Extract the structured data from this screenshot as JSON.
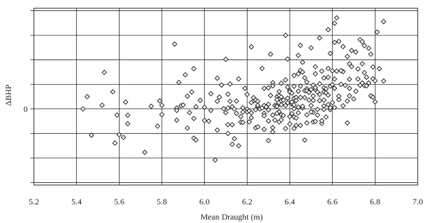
{
  "chart_data": {
    "type": "scatter",
    "title": "",
    "xlabel": "Mean Draught (m)",
    "ylabel": "ΔBHP",
    "xlim": [
      5.2,
      7.0
    ],
    "ylim": [
      -3.1,
      4.1
    ],
    "xticks": [
      "5.2",
      "5.4",
      "5.6",
      "5.8",
      "6.0",
      "6.2",
      "6.4",
      "6.6",
      "6.8",
      "7.0"
    ],
    "ytick_values": [
      -3,
      -2,
      -1,
      0,
      1,
      2,
      3,
      4
    ],
    "ytick_labels": {
      "0": "0"
    },
    "grid": true,
    "legend": "none",
    "marker": "diamond-open",
    "colors": {
      "marker": "#222222",
      "grid": "#222222",
      "frame": "#222222"
    },
    "points": [
      [
        5.43,
        0.0
      ],
      [
        5.45,
        0.5
      ],
      [
        5.47,
        -1.07
      ],
      [
        5.52,
        0.15
      ],
      [
        5.53,
        1.49
      ],
      [
        5.57,
        0.7
      ],
      [
        5.58,
        -1.39
      ],
      [
        5.59,
        -0.25
      ],
      [
        5.6,
        -1.05
      ],
      [
        5.62,
        -1.16
      ],
      [
        5.63,
        0.28
      ],
      [
        5.64,
        -0.26
      ],
      [
        5.64,
        -0.6
      ],
      [
        5.72,
        -1.77
      ],
      [
        5.75,
        0.11
      ],
      [
        5.78,
        -0.7
      ],
      [
        5.79,
        0.33
      ],
      [
        5.8,
        -0.23
      ],
      [
        5.8,
        0.15
      ],
      [
        5.86,
        2.64
      ],
      [
        5.87,
        -0.46
      ],
      [
        5.87,
        0.04
      ],
      [
        5.87,
        -0.06
      ],
      [
        5.88,
        1.08
      ],
      [
        5.89,
        0.13
      ],
      [
        5.9,
        0.16
      ],
      [
        5.91,
        1.39
      ],
      [
        5.92,
        0.52
      ],
      [
        5.92,
        -0.78
      ],
      [
        5.93,
        -0.15
      ],
      [
        5.94,
        0.69
      ],
      [
        5.95,
        1.64
      ],
      [
        5.95,
        -0.39
      ],
      [
        5.95,
        -1.19
      ],
      [
        5.96,
        -1.26
      ],
      [
        5.96,
        0.09
      ],
      [
        5.98,
        0.35
      ],
      [
        6.0,
        0.07
      ],
      [
        6.0,
        -0.47
      ],
      [
        6.02,
        -0.5
      ],
      [
        6.03,
        0.62
      ],
      [
        6.03,
        -0.06
      ],
      [
        6.05,
        -2.08
      ],
      [
        6.06,
        -0.86
      ],
      [
        6.06,
        0.31
      ],
      [
        6.06,
        1.25
      ],
      [
        6.07,
        0.48
      ],
      [
        6.08,
        0.97
      ],
      [
        6.09,
        0.01
      ],
      [
        6.1,
        2.02
      ],
      [
        6.1,
        -0.15
      ],
      [
        6.11,
        0.6
      ],
      [
        6.11,
        -0.64
      ],
      [
        6.11,
        0.04
      ],
      [
        6.11,
        -1.0
      ],
      [
        6.12,
        0.31
      ],
      [
        6.12,
        1.02
      ],
      [
        6.13,
        0.09
      ],
      [
        6.13,
        -1.44
      ],
      [
        6.13,
        -0.64
      ],
      [
        6.14,
        0.0
      ],
      [
        6.14,
        -1.21
      ],
      [
        6.15,
        0.32
      ],
      [
        6.15,
        -0.18
      ],
      [
        6.16,
        1.22
      ],
      [
        6.16,
        -1.5
      ],
      [
        6.17,
        -0.31
      ],
      [
        6.17,
        -0.54
      ],
      [
        6.18,
        0.05
      ],
      [
        6.18,
        -0.55
      ],
      [
        6.18,
        -0.13
      ],
      [
        6.19,
        0.84
      ],
      [
        6.2,
        -0.01
      ],
      [
        6.2,
        -0.12
      ],
      [
        6.2,
        0.59
      ],
      [
        6.21,
        -0.53
      ],
      [
        6.21,
        -0.08
      ],
      [
        6.22,
        -0.16
      ],
      [
        6.22,
        -0.36
      ],
      [
        6.22,
        2.53
      ],
      [
        6.23,
        0.33
      ],
      [
        6.23,
        0.46
      ],
      [
        6.24,
        0.36
      ],
      [
        6.24,
        -0.03
      ],
      [
        6.24,
        -0.77
      ],
      [
        6.25,
        0.31
      ],
      [
        6.25,
        -0.73
      ],
      [
        6.25,
        0.09
      ],
      [
        6.25,
        0.15
      ],
      [
        6.26,
        0.0
      ],
      [
        6.27,
        0.04
      ],
      [
        6.27,
        1.65
      ],
      [
        6.28,
        -0.18
      ],
      [
        6.28,
        -0.83
      ],
      [
        6.28,
        -0.28
      ],
      [
        6.28,
        0.14
      ],
      [
        6.29,
        0.08
      ],
      [
        6.3,
        0.86
      ],
      [
        6.3,
        -0.49
      ],
      [
        6.3,
        0.19
      ],
      [
        6.3,
        -1.29
      ],
      [
        6.3,
        -0.04
      ],
      [
        6.31,
        2.23
      ],
      [
        6.31,
        0.55
      ],
      [
        6.32,
        1.07
      ],
      [
        6.32,
        -0.76
      ],
      [
        6.32,
        0.94
      ],
      [
        6.32,
        -0.25
      ],
      [
        6.32,
        -0.93
      ],
      [
        6.33,
        -0.46
      ],
      [
        6.33,
        0.14
      ],
      [
        6.34,
        0.5
      ],
      [
        6.34,
        0.37
      ],
      [
        6.34,
        0.16
      ],
      [
        6.34,
        0.1
      ],
      [
        6.35,
        0.54
      ],
      [
        6.35,
        0.71
      ],
      [
        6.35,
        -0.12
      ],
      [
        6.35,
        -0.53
      ],
      [
        6.36,
        0.49
      ],
      [
        6.36,
        -0.45
      ],
      [
        6.36,
        0.17
      ],
      [
        6.36,
        0.33
      ],
      [
        6.36,
        -0.24
      ],
      [
        6.37,
        0.36
      ],
      [
        6.37,
        -0.27
      ],
      [
        6.38,
        3.0
      ],
      [
        6.38,
        -0.8
      ],
      [
        6.38,
        0.14
      ],
      [
        6.39,
        0.89
      ],
      [
        6.39,
        2.03
      ],
      [
        6.39,
        0.44
      ],
      [
        6.39,
        0.25
      ],
      [
        6.4,
        0.75
      ],
      [
        6.4,
        -0.61
      ],
      [
        6.4,
        0.69
      ],
      [
        6.41,
        0.2
      ],
      [
        6.41,
        -0.19
      ],
      [
        6.41,
        0.28
      ],
      [
        6.41,
        0.64
      ],
      [
        6.42,
        -0.79
      ],
      [
        6.42,
        0.01
      ],
      [
        6.42,
        0.17
      ],
      [
        6.42,
        0.92
      ],
      [
        6.42,
        -0.33
      ],
      [
        6.42,
        0.44
      ],
      [
        6.43,
        -0.67
      ],
      [
        6.43,
        0.47
      ],
      [
        6.43,
        0.34
      ],
      [
        6.43,
        -0.37
      ],
      [
        6.44,
        2.18
      ],
      [
        6.44,
        1.43
      ],
      [
        6.44,
        0.07
      ],
      [
        6.44,
        -0.16
      ],
      [
        6.45,
        0.93
      ],
      [
        6.45,
        0.47
      ],
      [
        6.45,
        2.59
      ],
      [
        6.45,
        1.57
      ],
      [
        6.45,
        -0.67
      ],
      [
        6.46,
        0.04
      ],
      [
        6.46,
        1.9
      ],
      [
        6.46,
        0.11
      ],
      [
        6.47,
        0.46
      ],
      [
        6.47,
        0.74
      ],
      [
        6.47,
        -1.27
      ],
      [
        6.47,
        1.27
      ],
      [
        6.48,
        -0.24
      ],
      [
        6.48,
        0.82
      ],
      [
        6.48,
        0.74
      ],
      [
        6.48,
        -0.57
      ],
      [
        6.49,
        0.36
      ],
      [
        6.49,
        0.67
      ],
      [
        6.5,
        0.79
      ],
      [
        6.5,
        2.49
      ],
      [
        6.5,
        0.14
      ],
      [
        6.51,
        -0.14
      ],
      [
        6.51,
        0.35
      ],
      [
        6.51,
        0.97
      ],
      [
        6.51,
        -0.53
      ],
      [
        6.51,
        0.53
      ],
      [
        6.52,
        1.72
      ],
      [
        6.52,
        -0.51
      ],
      [
        6.52,
        0.79
      ],
      [
        6.52,
        0.87
      ],
      [
        6.53,
        0.69
      ],
      [
        6.53,
        -0.02
      ],
      [
        6.53,
        -0.25
      ],
      [
        6.54,
        2.89
      ],
      [
        6.54,
        0.34
      ],
      [
        6.54,
        1.02
      ],
      [
        6.54,
        0.59
      ],
      [
        6.55,
        1.54
      ],
      [
        6.55,
        -0.59
      ],
      [
        6.55,
        -0.48
      ],
      [
        6.56,
        0.36
      ],
      [
        6.56,
        0.69
      ],
      [
        6.56,
        0.12
      ],
      [
        6.56,
        0.86
      ],
      [
        6.57,
        0.82
      ],
      [
        6.57,
        0.66
      ],
      [
        6.57,
        -0.33
      ],
      [
        6.58,
        3.23
      ],
      [
        6.58,
        1.29
      ],
      [
        6.58,
        0.18
      ],
      [
        6.58,
        0.56
      ],
      [
        6.59,
        -0.03
      ],
      [
        6.59,
        0.05
      ],
      [
        6.59,
        0.93
      ],
      [
        6.59,
        2.26
      ],
      [
        6.6,
        1.55
      ],
      [
        6.6,
        0.26
      ],
      [
        6.61,
        2.71
      ],
      [
        6.61,
        0.06
      ],
      [
        6.61,
        1.22
      ],
      [
        6.61,
        0.84
      ],
      [
        6.61,
        3.49
      ],
      [
        6.62,
        3.71
      ],
      [
        6.62,
        1.54
      ],
      [
        6.63,
        0.38
      ],
      [
        6.63,
        0.52
      ],
      [
        6.63,
        2.75
      ],
      [
        6.64,
        1.0
      ],
      [
        6.65,
        0.13
      ],
      [
        6.65,
        2.54
      ],
      [
        6.65,
        1.52
      ],
      [
        6.66,
        0.96
      ],
      [
        6.67,
        2.14
      ],
      [
        6.67,
        -0.57
      ],
      [
        6.67,
        0.32
      ],
      [
        6.68,
        1.21
      ],
      [
        6.68,
        0.84
      ],
      [
        6.68,
        0.53
      ],
      [
        6.69,
        2.38
      ],
      [
        6.69,
        1.73
      ],
      [
        6.7,
        0.41
      ],
      [
        6.71,
        2.32
      ],
      [
        6.71,
        0.72
      ],
      [
        6.72,
        1.22
      ],
      [
        6.73,
        0.96
      ],
      [
        6.73,
        2.82
      ],
      [
        6.74,
        2.74
      ],
      [
        6.74,
        1.06
      ],
      [
        6.74,
        1.84
      ],
      [
        6.75,
        0.95
      ],
      [
        6.75,
        2.58
      ],
      [
        6.75,
        1.48
      ],
      [
        6.76,
        0.94
      ],
      [
        6.76,
        1.29
      ],
      [
        6.77,
        2.47
      ],
      [
        6.77,
        1.06
      ],
      [
        6.78,
        0.53
      ],
      [
        6.78,
        2.23
      ],
      [
        6.79,
        1.23
      ],
      [
        6.79,
        1.71
      ],
      [
        6.79,
        0.48
      ],
      [
        6.8,
        1.15
      ],
      [
        6.8,
        0.29
      ],
      [
        6.81,
        3.13
      ],
      [
        6.82,
        1.64
      ],
      [
        6.84,
        1.14
      ],
      [
        6.84,
        3.56
      ],
      [
        6.52,
        1.43
      ],
      [
        6.58,
        1.65
      ],
      [
        6.68,
        1.84
      ],
      [
        6.48,
        1.1
      ],
      [
        6.36,
        1.05
      ],
      [
        6.42,
        1.36
      ],
      [
        6.6,
        0.99
      ],
      [
        6.72,
        1.63
      ],
      [
        6.56,
        1.26
      ],
      [
        6.46,
        1.5
      ],
      [
        6.38,
        1.18
      ],
      [
        6.64,
        1.56
      ],
      [
        6.28,
        0.84
      ],
      [
        6.34,
        -0.18
      ],
      [
        6.4,
        -0.31
      ],
      [
        6.5,
        -0.12
      ],
      [
        6.22,
        0.26
      ],
      [
        6.56,
        -0.02
      ],
      [
        6.44,
        0.72
      ]
    ]
  }
}
